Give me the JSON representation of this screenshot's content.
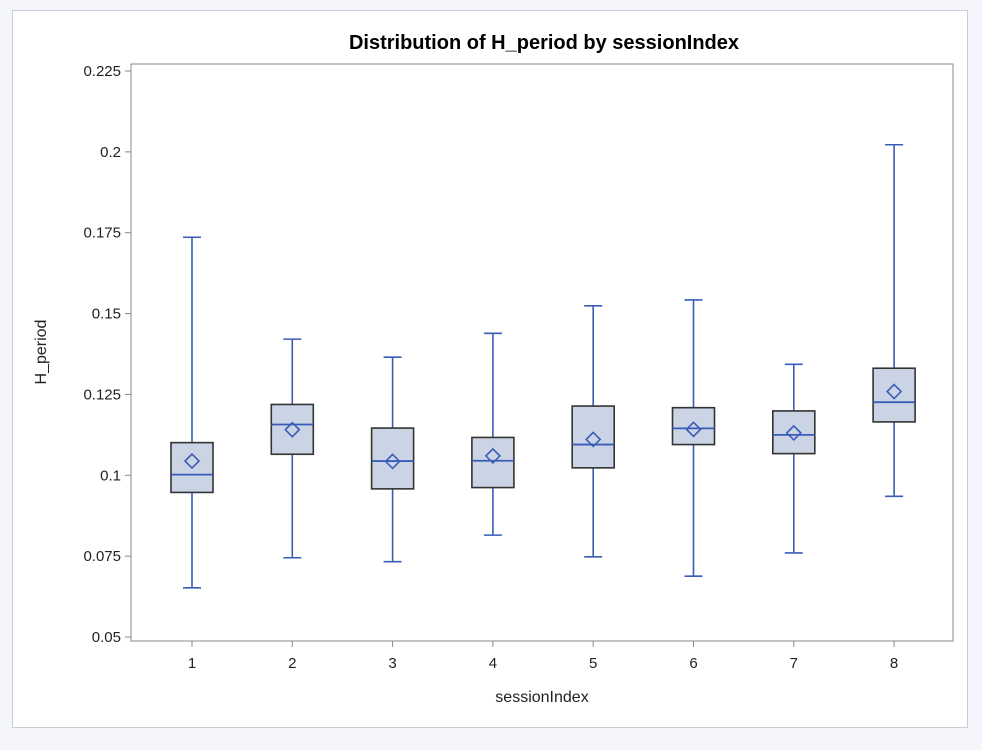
{
  "chart_data": {
    "type": "box",
    "title": "Distribution of H_period by sessionIndex",
    "xlabel": "sessionIndex",
    "ylabel": "H_period",
    "ylim": [
      0.05,
      0.225
    ],
    "yticks": [
      "0.05",
      "0.075",
      "0.1",
      "0.125",
      "0.15",
      "0.175",
      "0.2",
      "0.225"
    ],
    "categories": [
      "1",
      "2",
      "3",
      "4",
      "5",
      "6",
      "7",
      "8"
    ],
    "boxes": [
      {
        "category": "1",
        "min": 0.0652,
        "q1": 0.0947,
        "median": 0.1002,
        "q3": 0.1101,
        "max": 0.1736,
        "mean": 0.1044
      },
      {
        "category": "2",
        "min": 0.0745,
        "q1": 0.1065,
        "median": 0.1157,
        "q3": 0.1219,
        "max": 0.1421,
        "mean": 0.1141
      },
      {
        "category": "3",
        "min": 0.0733,
        "q1": 0.0958,
        "median": 0.1044,
        "q3": 0.1146,
        "max": 0.1365,
        "mean": 0.1043
      },
      {
        "category": "4",
        "min": 0.0815,
        "q1": 0.0962,
        "median": 0.1045,
        "q3": 0.1117,
        "max": 0.1439,
        "mean": 0.106
      },
      {
        "category": "5",
        "min": 0.0748,
        "q1": 0.1023,
        "median": 0.1095,
        "q3": 0.1214,
        "max": 0.1524,
        "mean": 0.1111
      },
      {
        "category": "6",
        "min": 0.0688,
        "q1": 0.1095,
        "median": 0.1145,
        "q3": 0.1209,
        "max": 0.1542,
        "mean": 0.1142
      },
      {
        "category": "7",
        "min": 0.076,
        "q1": 0.1067,
        "median": 0.1125,
        "q3": 0.1199,
        "max": 0.1343,
        "mean": 0.1131
      },
      {
        "category": "8",
        "min": 0.0935,
        "q1": 0.1165,
        "median": 0.1226,
        "q3": 0.1331,
        "max": 0.2022,
        "mean": 0.1259
      }
    ],
    "grid": false,
    "legend": "none",
    "colors": {
      "box_fill": "#cbd4e4",
      "box_edge": "#333333",
      "whisker": "#3a5cb8",
      "median": "#3a5cb8",
      "mean_marker": "#3a5cb8",
      "axis": "#888888"
    }
  }
}
